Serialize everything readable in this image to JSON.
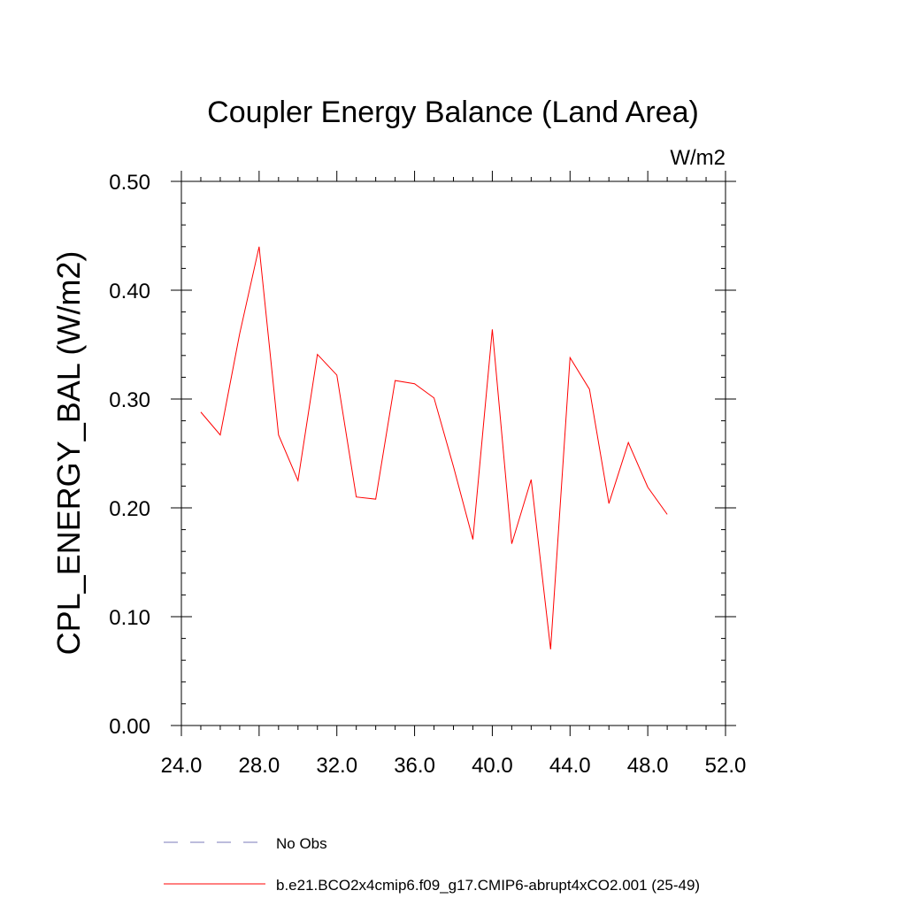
{
  "chart_data": {
    "type": "line",
    "title": "Coupler Energy Balance (Land Area)",
    "units_label": "W/m2",
    "xlabel": "",
    "ylabel": "CPL_ENERGY_BAL  (W/m2)",
    "xlim": [
      24,
      52
    ],
    "ylim": [
      0,
      0.5
    ],
    "x_ticks": [
      24,
      28,
      32,
      36,
      40,
      44,
      48,
      52
    ],
    "x_tick_labels": [
      "24.0",
      "28.0",
      "32.0",
      "36.0",
      "40.0",
      "44.0",
      "48.0",
      "52.0"
    ],
    "y_ticks": [
      0,
      0.1,
      0.2,
      0.3,
      0.4,
      0.5
    ],
    "y_tick_labels": [
      "0.00",
      "0.10",
      "0.20",
      "0.30",
      "0.40",
      "0.50"
    ],
    "grid": false,
    "legend_position": "bottom",
    "series": [
      {
        "name": "b.e21.BCO2x4cmip6.f09_g17.CMIP6-abrupt4xCO2.001 (25-49)",
        "color": "#ff0000",
        "x": [
          25,
          26,
          27,
          28,
          29,
          30,
          31,
          32,
          33,
          34,
          35,
          36,
          37,
          38,
          39,
          40,
          41,
          42,
          43,
          44,
          45,
          46,
          47,
          48,
          49
        ],
        "values": [
          0.288,
          0.267,
          0.36,
          0.44,
          0.267,
          0.225,
          0.341,
          0.322,
          0.21,
          0.208,
          0.317,
          0.314,
          0.301,
          0.238,
          0.171,
          0.364,
          0.167,
          0.226,
          0.07,
          0.338,
          0.309,
          0.204,
          0.26,
          0.219,
          0.194
        ]
      }
    ],
    "legend": [
      {
        "label": "No Obs",
        "style": "dashed",
        "color": "#7a7ab8"
      },
      {
        "label": "b.e21.BCO2x4cmip6.f09_g17.CMIP6-abrupt4xCO2.001 (25-49)",
        "style": "solid",
        "color": "#ff0000"
      }
    ]
  }
}
